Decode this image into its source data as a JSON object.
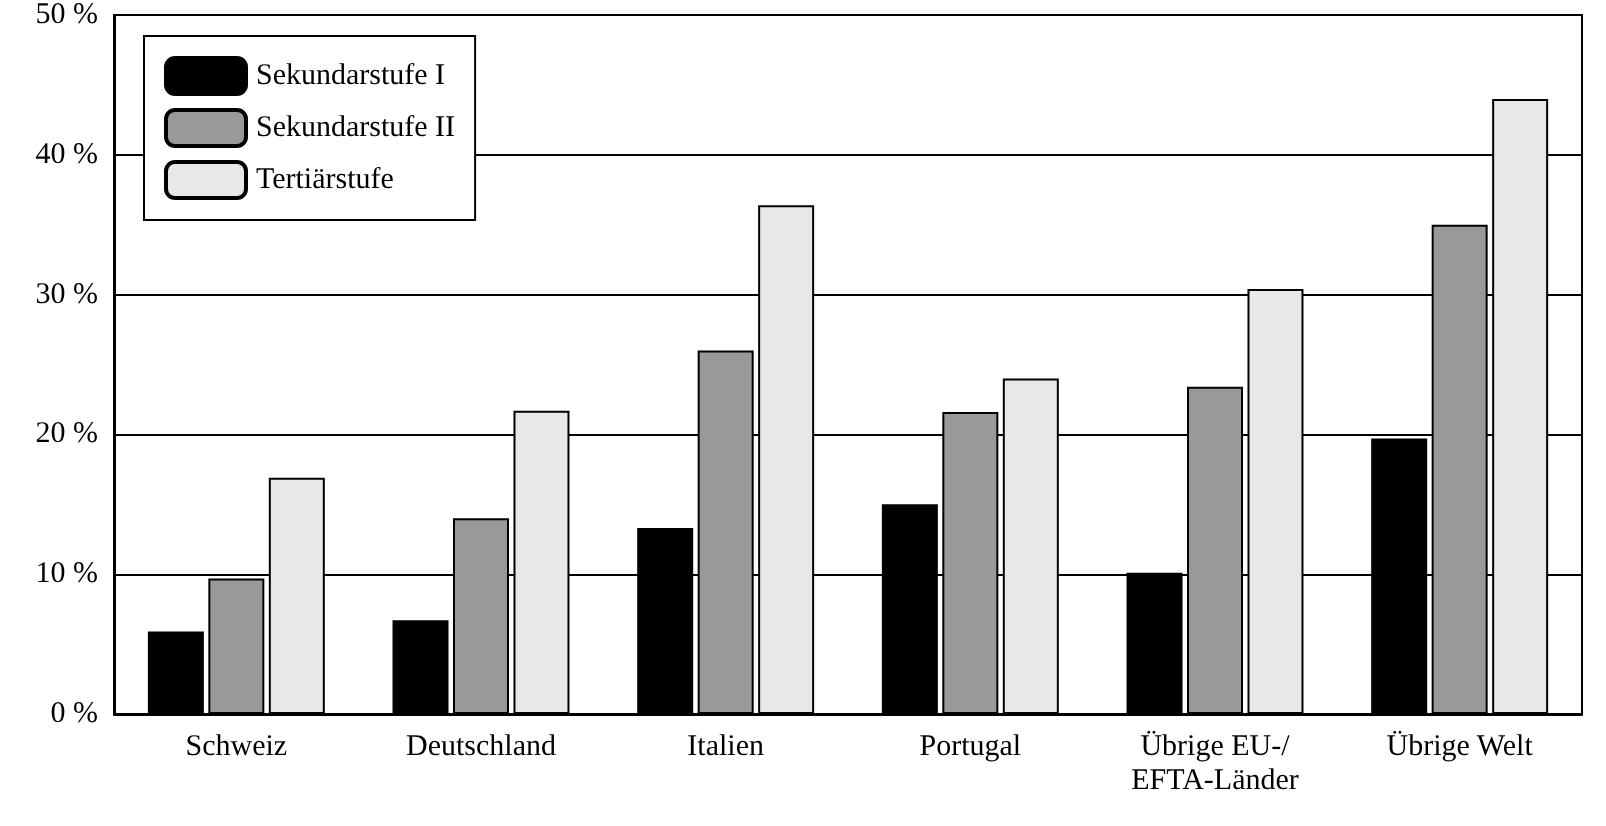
{
  "chart_data": {
    "type": "bar",
    "categories": [
      "Schweiz",
      "Deutschland",
      "Italien",
      "Portugal",
      "Übrige EU-/\nEFTA-Länder",
      "Übrige Welt"
    ],
    "series": [
      {
        "name": "Sekundarstufe I",
        "color": "#000000",
        "values": [
          5.9,
          6.7,
          13.3,
          15.0,
          10.1,
          19.7
        ]
      },
      {
        "name": "Sekundarstufe II",
        "color": "#999999",
        "values": [
          9.7,
          14.0,
          26.0,
          21.6,
          23.4,
          35.0
        ]
      },
      {
        "name": "Tertiärstufe",
        "color": "#e8e8e8",
        "values": [
          16.9,
          21.7,
          36.4,
          24.0,
          30.4,
          44.0
        ]
      }
    ],
    "ylim": [
      0,
      50
    ],
    "yticks": [
      {
        "value": 0,
        "label": "0 %"
      },
      {
        "value": 10,
        "label": "10 %"
      },
      {
        "value": 20,
        "label": "20 %"
      },
      {
        "value": 30,
        "label": "30 %"
      },
      {
        "value": 40,
        "label": "40 %"
      },
      {
        "value": 50,
        "label": "50 %"
      }
    ],
    "grid": "y",
    "legend": "top left"
  }
}
